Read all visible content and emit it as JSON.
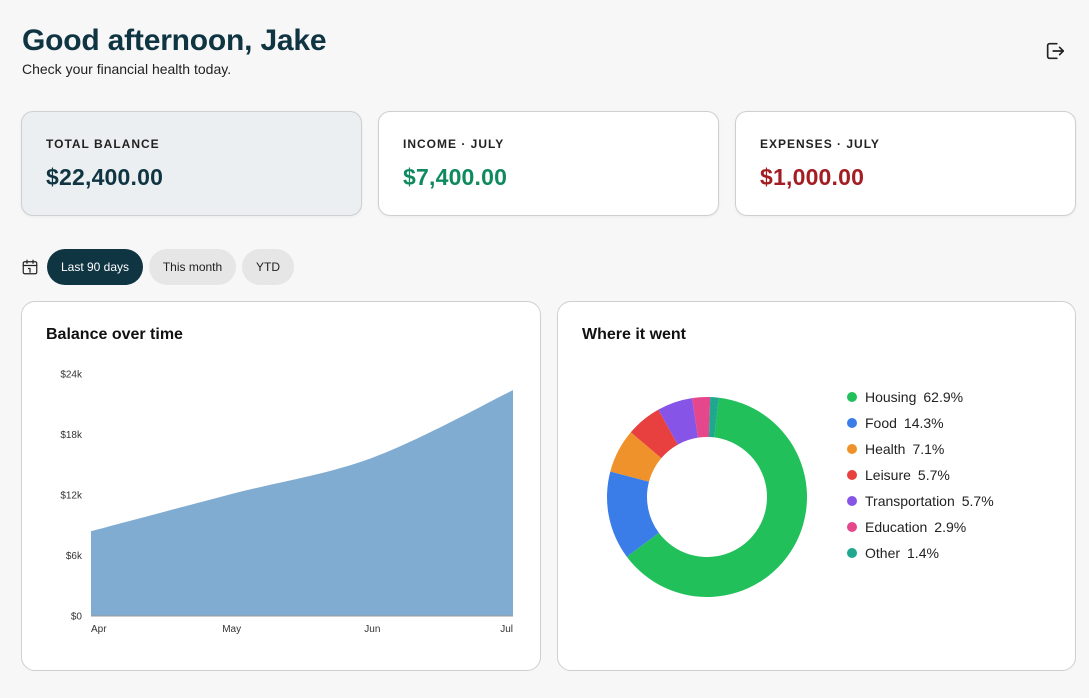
{
  "header": {
    "greeting": "Good afternoon, Jake",
    "subtitle": "Check your financial health today.",
    "logout_icon": "logout-icon"
  },
  "stats": [
    {
      "label": "TOTAL BALANCE",
      "value": "$22,400.00",
      "color": "#0f3442"
    },
    {
      "label": "INCOME · JULY",
      "value": "$7,400.00",
      "color": "#0f8a5f"
    },
    {
      "label": "EXPENSES · JULY",
      "value": "$1,000.00",
      "color": "#a31d22"
    }
  ],
  "filters": {
    "icon": "calendar-icon",
    "options": [
      "Last 90 days",
      "This month",
      "YTD"
    ],
    "selected": "Last 90 days"
  },
  "balance_card": {
    "title": "Balance over time"
  },
  "spending_card": {
    "title": "Where it went"
  },
  "chart_data": [
    {
      "type": "area",
      "title": "Balance over time",
      "x_ticks": [
        "Apr",
        "May",
        "Jun",
        "Jul"
      ],
      "y_ticks": [
        "$0",
        "$6k",
        "$12k",
        "$18k",
        "$24k"
      ],
      "ylim": [
        0,
        24000
      ],
      "x": [
        0,
        0.333,
        0.667,
        1.0
      ],
      "values": [
        8400,
        12100,
        15700,
        22400
      ],
      "color": "#81acd1",
      "grid": false,
      "legend": "none"
    },
    {
      "type": "pie",
      "title": "Where it went",
      "donut": true,
      "legend": "right",
      "slices": [
        {
          "name": "Housing",
          "value": 62.9,
          "label": "62.9%",
          "color": "#22c05a"
        },
        {
          "name": "Food",
          "value": 14.3,
          "label": "14.3%",
          "color": "#3b7de8"
        },
        {
          "name": "Health",
          "value": 7.1,
          "label": "7.1%",
          "color": "#f0922b"
        },
        {
          "name": "Leisure",
          "value": 5.7,
          "label": "5.7%",
          "color": "#e8403f"
        },
        {
          "name": "Transportation",
          "value": 5.7,
          "label": "5.7%",
          "color": "#8654e6"
        },
        {
          "name": "Education",
          "value": 2.9,
          "label": "2.9%",
          "color": "#e5478c"
        },
        {
          "name": "Other",
          "value": 1.4,
          "label": "1.4%",
          "color": "#1fa88f"
        }
      ]
    }
  ]
}
